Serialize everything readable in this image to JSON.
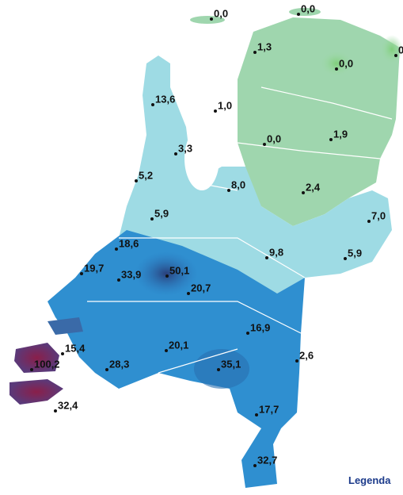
{
  "map": {
    "points": [
      {
        "label": "0,0"
      },
      {
        "label": "0,0"
      },
      {
        "label": "0"
      },
      {
        "label": "1,3"
      },
      {
        "label": "0,0"
      },
      {
        "label": "13,6"
      },
      {
        "label": "1,0"
      },
      {
        "label": "0,0"
      },
      {
        "label": "1,9"
      },
      {
        "label": "3,3"
      },
      {
        "label": "5,2"
      },
      {
        "label": "8,0"
      },
      {
        "label": "2,4"
      },
      {
        "label": "7,0"
      },
      {
        "label": "5,9"
      },
      {
        "label": "18,6"
      },
      {
        "label": "9,8"
      },
      {
        "label": "5,9"
      },
      {
        "label": "19,7"
      },
      {
        "label": "33,9"
      },
      {
        "label": "50,1"
      },
      {
        "label": "20,7"
      },
      {
        "label": "16,9"
      },
      {
        "label": "15,4"
      },
      {
        "label": "2,6"
      },
      {
        "label": "20,1"
      },
      {
        "label": "100,2"
      },
      {
        "label": "28,3"
      },
      {
        "label": "35,1"
      },
      {
        "label": "32,4"
      },
      {
        "label": "17,7"
      },
      {
        "label": "32,7"
      }
    ],
    "legend_button": "Legenda"
  }
}
